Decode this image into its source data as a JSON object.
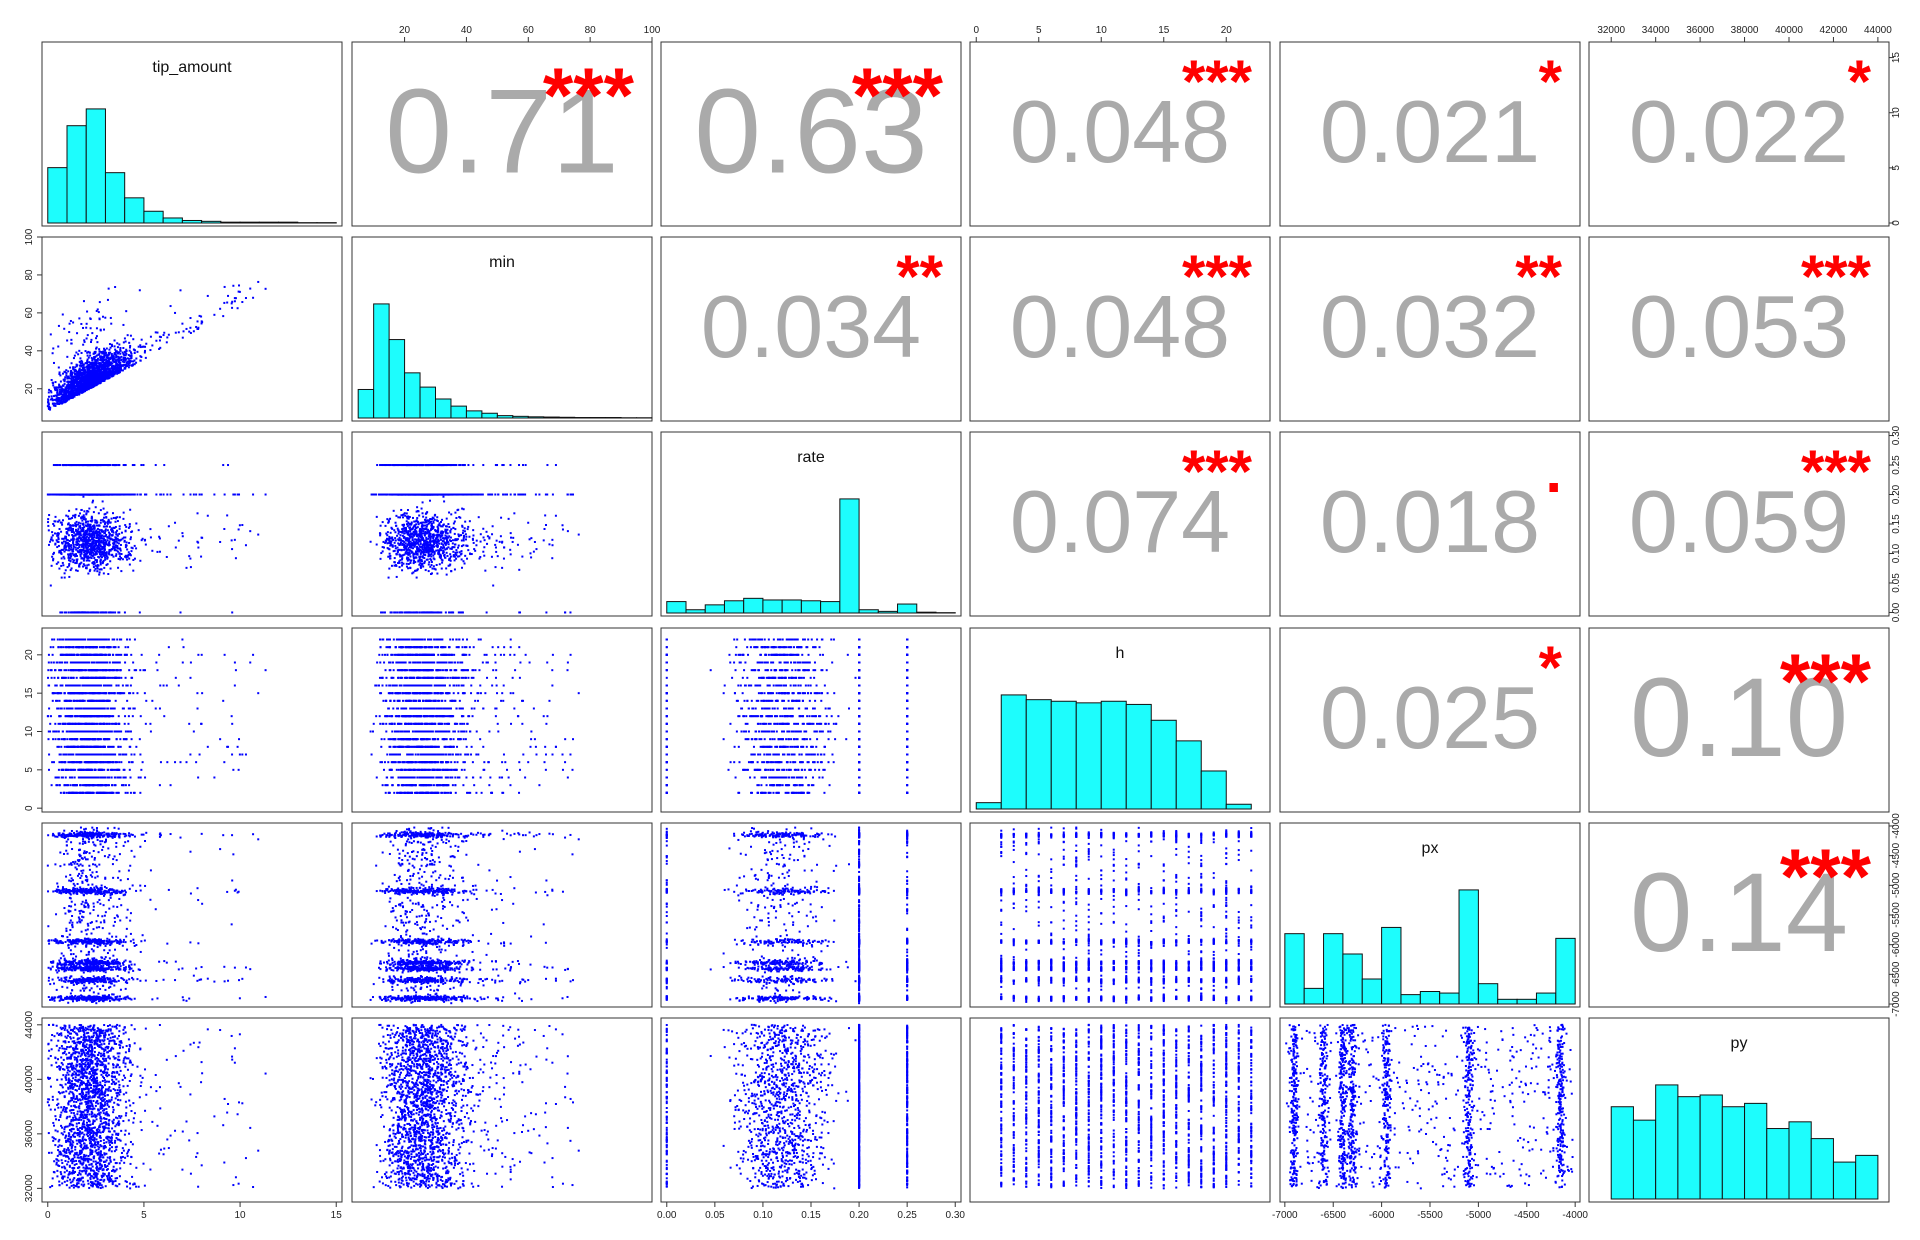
{
  "chart_data": {
    "type": "scatter-matrix",
    "variables": [
      "tip_amount",
      "min",
      "rate",
      "h",
      "px",
      "py"
    ],
    "colors": {
      "histogram": "#1dfdfd",
      "points": "#0000ff",
      "significant": "#ff0000",
      "nonsignificant": "#aaaaaa"
    },
    "ranges": {
      "tip_amount": [
        -0.3,
        15.3
      ],
      "min": [
        3,
        100
      ],
      "rate": [
        -0.006,
        0.306
      ],
      "h": [
        -0.5,
        23.5
      ],
      "px": [
        -7050,
        -3950
      ],
      "py": [
        31000,
        44500
      ]
    },
    "ticks": {
      "tip_amount": [
        0,
        5,
        10,
        15
      ],
      "min": [
        20,
        40,
        60,
        80,
        100
      ],
      "rate": [
        0.0,
        0.05,
        0.1,
        0.15,
        0.2,
        0.25,
        0.3
      ],
      "h": [
        0,
        5,
        10,
        15,
        20
      ],
      "px": [
        -7000,
        -6500,
        -6000,
        -5500,
        -5000,
        -4500,
        -4000
      ],
      "py_top": [
        32000,
        34000,
        36000,
        38000,
        40000,
        42000,
        44000
      ],
      "py_left": [
        32000,
        36000,
        40000,
        44000
      ],
      "hist_counts": [
        0,
        5,
        10,
        15
      ]
    },
    "tick_labels": {
      "tip_amount": [
        "0",
        "5",
        "10",
        "15"
      ],
      "min": [
        "20",
        "40",
        "60",
        "80",
        "100"
      ],
      "rate": [
        "0.00",
        "0.05",
        "0.10",
        "0.15",
        "0.20",
        "0.25",
        "0.30"
      ],
      "h": [
        "0",
        "5",
        "10",
        "15",
        "20"
      ],
      "px": [
        "-7000",
        "-6500",
        "-6000",
        "-5500",
        "-5000",
        "-4500",
        "-4000"
      ],
      "py_top": [
        "32000",
        "34000",
        "36000",
        "38000",
        "40000",
        "42000",
        "44000"
      ],
      "py_left": [
        "32000",
        "36000",
        "40000",
        "44000"
      ],
      "hist_counts": [
        "0",
        "5",
        "10",
        "15"
      ]
    },
    "correlations": [
      {
        "row": 0,
        "col": 1,
        "label": "0.71",
        "stars": "***",
        "color": "#ff0000",
        "size": 1.0
      },
      {
        "row": 0,
        "col": 2,
        "label": "0.63",
        "stars": "***",
        "color": "#ff0000",
        "size": 1.0
      },
      {
        "row": 0,
        "col": 3,
        "label": "0.048",
        "stars": "***",
        "color": "#aaaaaa",
        "size": 0.6
      },
      {
        "row": 0,
        "col": 4,
        "label": "0.021",
        "stars": "*",
        "color": "#aaaaaa",
        "size": 0.6
      },
      {
        "row": 0,
        "col": 5,
        "label": "0.022",
        "stars": "*",
        "color": "#aaaaaa",
        "size": 0.6
      },
      {
        "row": 1,
        "col": 2,
        "label": "0.034",
        "stars": "**",
        "color": "#aaaaaa",
        "size": 0.6
      },
      {
        "row": 1,
        "col": 3,
        "label": "0.048",
        "stars": "***",
        "color": "#aaaaaa",
        "size": 0.6
      },
      {
        "row": 1,
        "col": 4,
        "label": "0.032",
        "stars": "**",
        "color": "#aaaaaa",
        "size": 0.6
      },
      {
        "row": 1,
        "col": 5,
        "label": "0.053",
        "stars": "***",
        "color": "#aaaaaa",
        "size": 0.6
      },
      {
        "row": 2,
        "col": 3,
        "label": "0.074",
        "stars": "***",
        "color": "#aaaaaa",
        "size": 0.6
      },
      {
        "row": 2,
        "col": 4,
        "label": "0.018",
        "stars": ".",
        "color": "#aaaaaa",
        "size": 0.6
      },
      {
        "row": 2,
        "col": 5,
        "label": "0.059",
        "stars": "***",
        "color": "#aaaaaa",
        "size": 0.6
      },
      {
        "row": 3,
        "col": 4,
        "label": "0.025",
        "stars": "*",
        "color": "#aaaaaa",
        "size": 0.6
      },
      {
        "row": 3,
        "col": 5,
        "label": "0.10",
        "stars": "***",
        "color": "#aaaaaa",
        "size": 0.9
      },
      {
        "row": 4,
        "col": 5,
        "label": "0.14",
        "stars": "***",
        "color": "#aaaaaa",
        "size": 0.9
      }
    ],
    "histograms": {
      "tip_amount": {
        "breaks": [
          0,
          1,
          2,
          3,
          4,
          5,
          6,
          7,
          8,
          9,
          10,
          11,
          12,
          13,
          14,
          15
        ],
        "counts": [
          3.3,
          5.8,
          6.8,
          3.0,
          1.5,
          0.7,
          0.3,
          0.15,
          0.1,
          0.05,
          0.05,
          0.05,
          0.05,
          0.02,
          0.02
        ]
      },
      "min": {
        "breaks": [
          5,
          10,
          15,
          20,
          25,
          30,
          35,
          40,
          45,
          50,
          55,
          60,
          65,
          70,
          75,
          80,
          85,
          90,
          95,
          100
        ],
        "counts": [
          1.2,
          4.8,
          3.3,
          1.9,
          1.3,
          0.8,
          0.5,
          0.3,
          0.2,
          0.1,
          0.07,
          0.05,
          0.04,
          0.03,
          0.02,
          0.02,
          0.02,
          0.01,
          0.01
        ]
      },
      "rate": {
        "breaks": [
          0.0,
          0.02,
          0.04,
          0.06,
          0.08,
          0.1,
          0.12,
          0.14,
          0.16,
          0.18,
          0.2,
          0.22,
          0.24,
          0.26,
          0.28,
          0.3
        ],
        "counts": [
          0.7,
          0.2,
          0.5,
          0.75,
          0.9,
          0.8,
          0.8,
          0.75,
          0.7,
          7.0,
          0.2,
          0.1,
          0.55,
          0.05,
          0.02
        ]
      },
      "h": {
        "breaks": [
          0,
          2,
          4,
          6,
          8,
          10,
          12,
          14,
          16,
          18,
          20,
          22
        ],
        "counts": [
          0.4,
          7.2,
          6.9,
          6.8,
          6.7,
          6.8,
          6.6,
          5.6,
          4.3,
          2.4,
          0.3
        ]
      },
      "px": {
        "breaks": [
          -7000,
          -6800,
          -6600,
          -6400,
          -6200,
          -6000,
          -5800,
          -5600,
          -5400,
          -5200,
          -5000,
          -4800,
          -4600,
          -4400,
          -4200,
          -4000
        ],
        "counts": [
          4.5,
          1.0,
          4.5,
          3.2,
          1.6,
          4.9,
          0.6,
          0.8,
          0.7,
          7.3,
          1.3,
          0.3,
          0.3,
          0.7,
          4.2
        ]
      },
      "py": {
        "breaks": [
          32000,
          33000,
          34000,
          35000,
          36000,
          37000,
          38000,
          39000,
          40000,
          41000,
          42000,
          43000,
          44000
        ],
        "counts": [
          5.5,
          4.7,
          6.8,
          6.1,
          6.2,
          5.5,
          5.7,
          4.2,
          4.6,
          3.6,
          2.2,
          2.6
        ]
      }
    }
  }
}
